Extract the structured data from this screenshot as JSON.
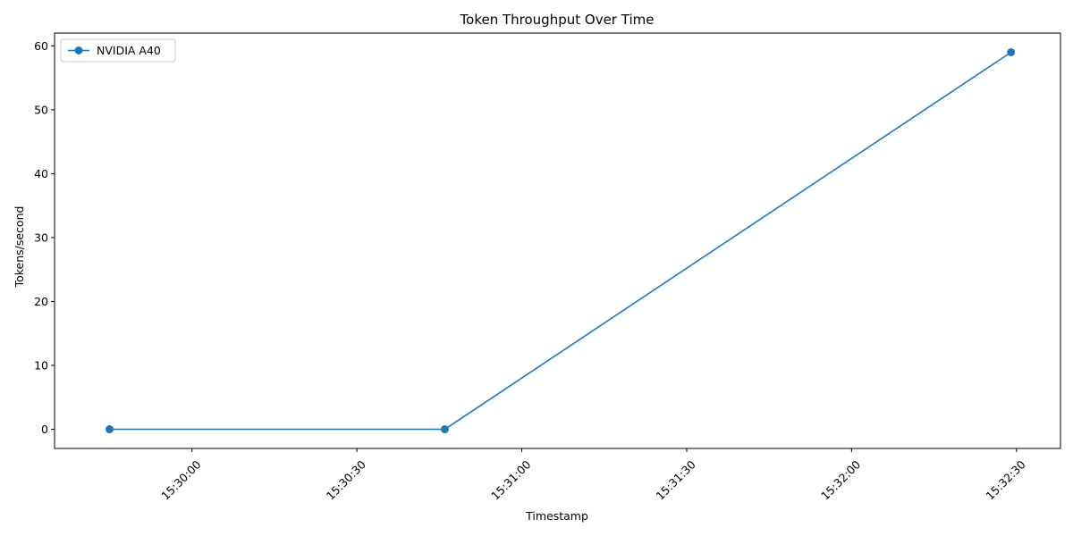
{
  "chart_data": {
    "type": "line",
    "title": "Token Throughput Over Time",
    "xlabel": "Timestamp",
    "ylabel": "Tokens/second",
    "x_type": "time",
    "xlim": [
      "15:29:35",
      "15:32:38"
    ],
    "ylim": [
      -3,
      62
    ],
    "x_ticks": [
      "15:30:00",
      "15:30:30",
      "15:31:00",
      "15:31:30",
      "15:32:00",
      "15:32:30"
    ],
    "y_ticks": [
      0,
      10,
      20,
      30,
      40,
      50,
      60
    ],
    "x_tick_rotation": 45,
    "grid": false,
    "legend": {
      "placement": "top-left"
    },
    "series": [
      {
        "name": "NVIDIA A40",
        "color": "#1f77b4",
        "marker": "circle",
        "x": [
          "15:29:45",
          "15:30:46",
          "15:32:29"
        ],
        "y": [
          0,
          0,
          59
        ]
      }
    ]
  }
}
